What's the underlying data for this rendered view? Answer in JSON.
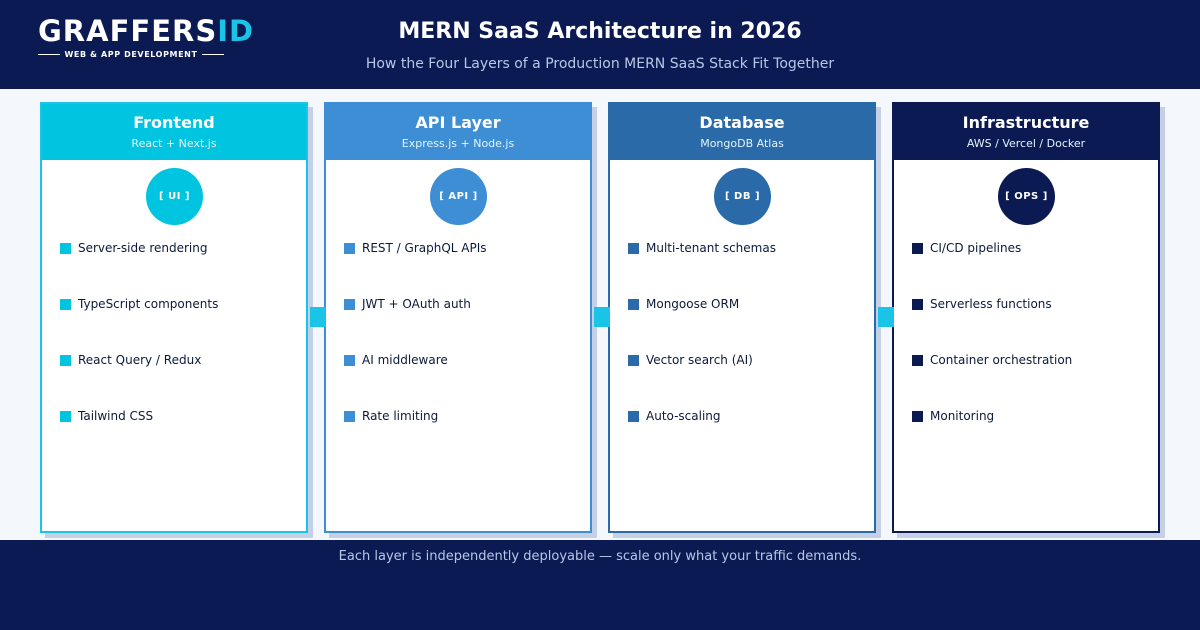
{
  "brand": {
    "logo_main": "GRAFFERS",
    "logo_accent": "ID",
    "logo_tagline": "WEB & APP DEVELOPMENT"
  },
  "header": {
    "title": "MERN SaaS Architecture in 2026",
    "subtitle": "How the Four Layers of a Production MERN SaaS Stack Fit Together"
  },
  "layers": [
    {
      "title": "Frontend",
      "subtitle": "React + Next.js",
      "badge": "[ UI ]",
      "color": "#00c4e0",
      "border_color": "#19c4e6",
      "items": [
        "Server-side rendering",
        "TypeScript components",
        "React Query / Redux",
        "Tailwind CSS"
      ]
    },
    {
      "title": "API Layer",
      "subtitle": "Express.js + Node.js",
      "badge": "[ API ]",
      "color": "#3d8ed4",
      "border_color": "#3d8ed4",
      "items": [
        "REST / GraphQL APIs",
        "JWT + OAuth auth",
        "AI middleware",
        "Rate limiting"
      ]
    },
    {
      "title": "Database",
      "subtitle": "MongoDB Atlas",
      "badge": "[ DB ]",
      "color": "#2a6aa9",
      "border_color": "#2a6aa9",
      "items": [
        "Multi-tenant schemas",
        "Mongoose ORM",
        "Vector search (AI)",
        "Auto-scaling"
      ]
    },
    {
      "title": "Infrastructure",
      "subtitle": "AWS / Vercel / Docker",
      "badge": "[ OPS ]",
      "color": "#0b1a52",
      "border_color": "#0b1a52",
      "items": [
        "CI/CD pipelines",
        "Serverless functions",
        "Container orchestration",
        "Monitoring"
      ]
    }
  ],
  "colors": {
    "background": "#f4f7fb",
    "navy": "#0b1a52",
    "cyan": "#19c4e6"
  },
  "footer": {
    "text": "Each layer is independently deployable — scale only what your traffic demands."
  }
}
